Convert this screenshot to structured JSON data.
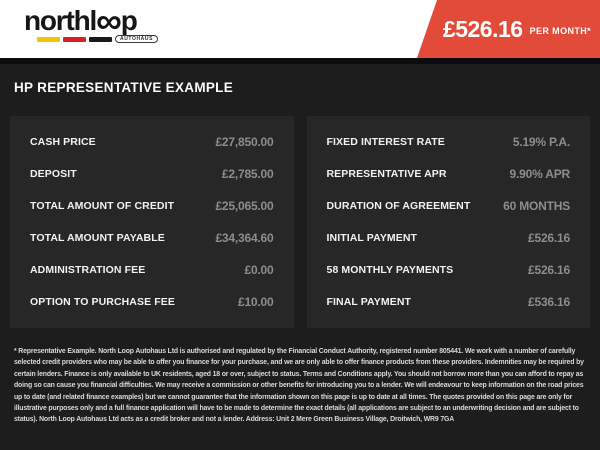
{
  "header": {
    "logo": {
      "text_main": "northl",
      "infinity": "∞",
      "text_tail": "p",
      "badge_label": "AUTOHAUS",
      "stripe_colors": [
        "#F2C500",
        "#D91F26",
        "#1A1A1A"
      ]
    },
    "price_badge": {
      "amount": "£526.16",
      "suffix": "PER MONTH*"
    }
  },
  "heading": "HP REPRESENTATIVE EXAMPLE",
  "finance_example": {
    "left_rows": [
      {
        "label": "CASH PRICE",
        "value": "£27,850.00"
      },
      {
        "label": "DEPOSIT",
        "value": "£2,785.00"
      },
      {
        "label": "TOTAL AMOUNT OF CREDIT",
        "value": "£25,065.00"
      },
      {
        "label": "TOTAL AMOUNT PAYABLE",
        "value": "£34,364.60"
      },
      {
        "label": "ADMINISTRATION FEE",
        "value": "£0.00"
      },
      {
        "label": "OPTION TO PURCHASE FEE",
        "value": "£10.00"
      }
    ],
    "right_rows": [
      {
        "label": "FIXED INTEREST RATE",
        "value": "5.19% P.A."
      },
      {
        "label": "REPRESENTATIVE APR",
        "value": "9.90% APR"
      },
      {
        "label": "DURATION OF AGREEMENT",
        "value": "60 MONTHS"
      },
      {
        "label": "INITIAL PAYMENT",
        "value": "£526.16"
      },
      {
        "label": "58 MONTHLY PAYMENTS",
        "value": "£526.16"
      },
      {
        "label": "FINAL PAYMENT",
        "value": "£536.16"
      }
    ]
  },
  "disclaimer": "* Representative Example. North Loop Autohaus Ltd is authorised and regulated by the Financial Conduct Authority, registered number 805441. We work with a number of carefully selected credit providers who may be able to offer you finance for your purchase, and we are only able to offer finance products from these providers. Indemnities may be required by certain lenders. Finance is only available to UK residents, aged 18 or over, subject to status. Terms and Conditions apply. You should not borrow more than you can afford to repay as doing so can cause you financial difficulties. We may receive a commission or other benefits for introducing you to a lender. We will endeavour to keep information on the road prices up to date (and related finance examples) but we cannot guarantee that the information shown on this page is up to date at all times. The quotes provided on this page are only for illustrative purposes only and a full finance application will have to be made to determine the exact details (all applications are subject to an underwriting decision and are subject to status). North Loop Autohaus Ltd acts as a credit broker and not a lender. Address: Unit 2 Mere Green Business Village, Droitwich, WR9 7GA",
  "colors": {
    "accent_red": "#E24B3A",
    "body_bg": "#1D1D1D",
    "panel_bg": "#272727",
    "header_bg": "#FFFFFF",
    "label_text": "#F2F2F2",
    "value_text": "#8D8D8D"
  }
}
